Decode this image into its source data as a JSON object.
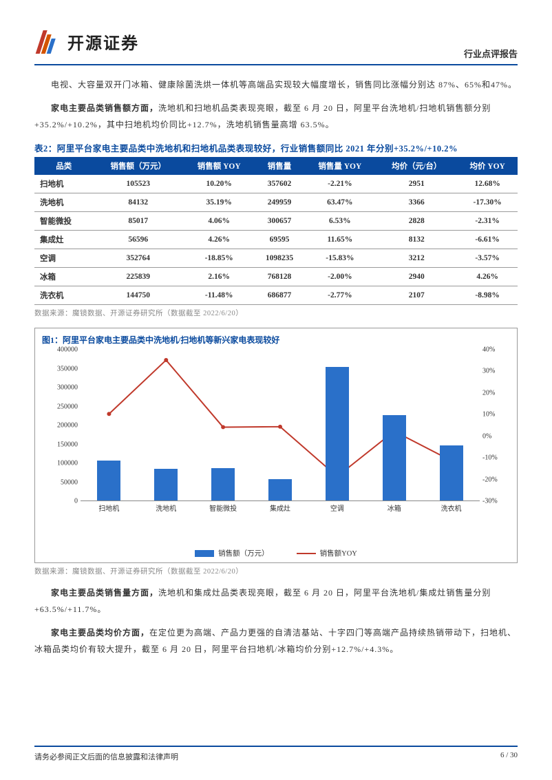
{
  "header": {
    "company": "开源证券",
    "report_type": "行业点评报告"
  },
  "para1": "电视、大容量双开门冰箱、健康除菌洗烘一体机等高端品实现较大幅度增长，销售同比涨幅分别达 87%、65%和47%。",
  "para2_bold": "家电主要品类销售额方面，",
  "para2_rest": "洗地机和扫地机品类表现亮眼，截至 6 月 20 日，阿里平台洗地机/扫地机销售额分别+35.2%/+10.2%，其中扫地机均价同比+12.7%，洗地机销售量高增 63.5%。",
  "table": {
    "title": "表2：阿里平台家电主要品类中洗地机和扫地机品类表现较好，行业销售额同比 2021 年分别+35.2%/+10.2%",
    "columns": [
      "品类",
      "销售额（万元）",
      "销售额 YOY",
      "销售量",
      "销售量 YOY",
      "均价（元/台）",
      "均价 YOY"
    ],
    "rows": [
      [
        "扫地机",
        "105523",
        "10.20%",
        "357602",
        "-2.21%",
        "2951",
        "12.68%"
      ],
      [
        "洗地机",
        "84132",
        "35.19%",
        "249959",
        "63.47%",
        "3366",
        "-17.30%"
      ],
      [
        "智能微投",
        "85017",
        "4.06%",
        "300657",
        "6.53%",
        "2828",
        "-2.31%"
      ],
      [
        "集成灶",
        "56596",
        "4.26%",
        "69595",
        "11.65%",
        "8132",
        "-6.61%"
      ],
      [
        "空调",
        "352764",
        "-18.85%",
        "1098235",
        "-15.83%",
        "3212",
        "-3.57%"
      ],
      [
        "冰箱",
        "225839",
        "2.16%",
        "768128",
        "-2.00%",
        "2940",
        "4.26%"
      ],
      [
        "洗衣机",
        "144750",
        "-11.48%",
        "686877",
        "-2.77%",
        "2107",
        "-8.98%"
      ]
    ],
    "source": "数据来源：魔镜数据、开源证券研究所（数据截至 2022/6/20）"
  },
  "figure": {
    "title": "图1：阿里平台家电主要品类中洗地机/扫地机等新兴家电表现较好",
    "type": "bar+line",
    "categories": [
      "扫地机",
      "洗地机",
      "智能微投",
      "集成灶",
      "空调",
      "冰箱",
      "洗衣机"
    ],
    "bar_values": [
      105523,
      84132,
      85017,
      56596,
      352764,
      225839,
      144750
    ],
    "line_values_pct": [
      10.2,
      35.19,
      4.06,
      4.26,
      -18.85,
      2.16,
      -11.48
    ],
    "y_left": {
      "min": 0,
      "max": 400000,
      "step": 50000
    },
    "y_right": {
      "min": -30,
      "max": 40,
      "step": 10
    },
    "bar_color": "#2a70c9",
    "line_color": "#c0392b",
    "axis_color": "#888888",
    "tick_fontsize": 10,
    "legend": {
      "bar": "销售额（万元）",
      "line": "销售额YOY"
    },
    "source": "数据来源：魔镜数据、开源证券研究所（数据截至 2022/6/20）"
  },
  "para3_bold": "家电主要品类销售量方面，",
  "para3_rest": "洗地机和集成灶品类表现亮眼，截至 6 月 20 日，阿里平台洗地机/集成灶销售量分别+63.5%/+11.7%。",
  "para4_bold": "家电主要品类均价方面，",
  "para4_rest": "在定位更为高端、产品力更强的自清洁基站、十字四门等高端产品持续热销带动下，扫地机、冰箱品类均价有较大提升，截至 6 月 20 日，阿里平台扫地机/冰箱均价分别+12.7%/+4.3%。",
  "footer": {
    "disclaimer": "请务必参阅正文后面的信息披露和法律声明",
    "page": "6 / 30"
  }
}
